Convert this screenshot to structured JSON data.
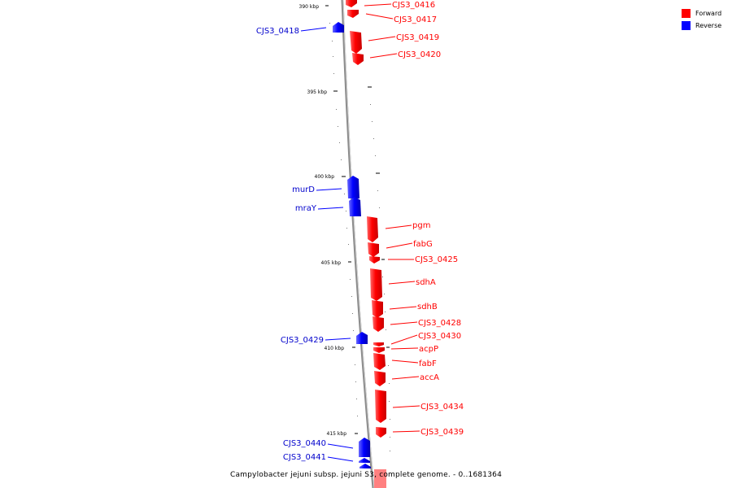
{
  "legend": {
    "forward_label": "Forward",
    "reverse_label": "Reverse",
    "forward_color": "#ff0000",
    "reverse_color": "#0000ff"
  },
  "caption": "Campylobacter jejuni subsp. jejuni S3, complete genome. - 0..1681364",
  "ticks": [
    "390 kbp",
    "395 kbp",
    "400 kbp",
    "405 kbp",
    "410 kbp",
    "415 kbp"
  ],
  "genes_forward": [
    "CJS3_0416",
    "CJS3_0417",
    "CJS3_0419",
    "CJS3_0420",
    "pgm",
    "fabG",
    "CJS3_0425",
    "sdhA",
    "sdhB",
    "CJS3_0428",
    "CJS3_0430",
    "acpP",
    "fabF",
    "accA",
    "CJS3_0434",
    "CJS3_0439"
  ],
  "genes_reverse": [
    "CJS3_0418",
    "murD",
    "mraY",
    "CJS3_0429",
    "CJS3_0440",
    "CJS3_0441"
  ]
}
